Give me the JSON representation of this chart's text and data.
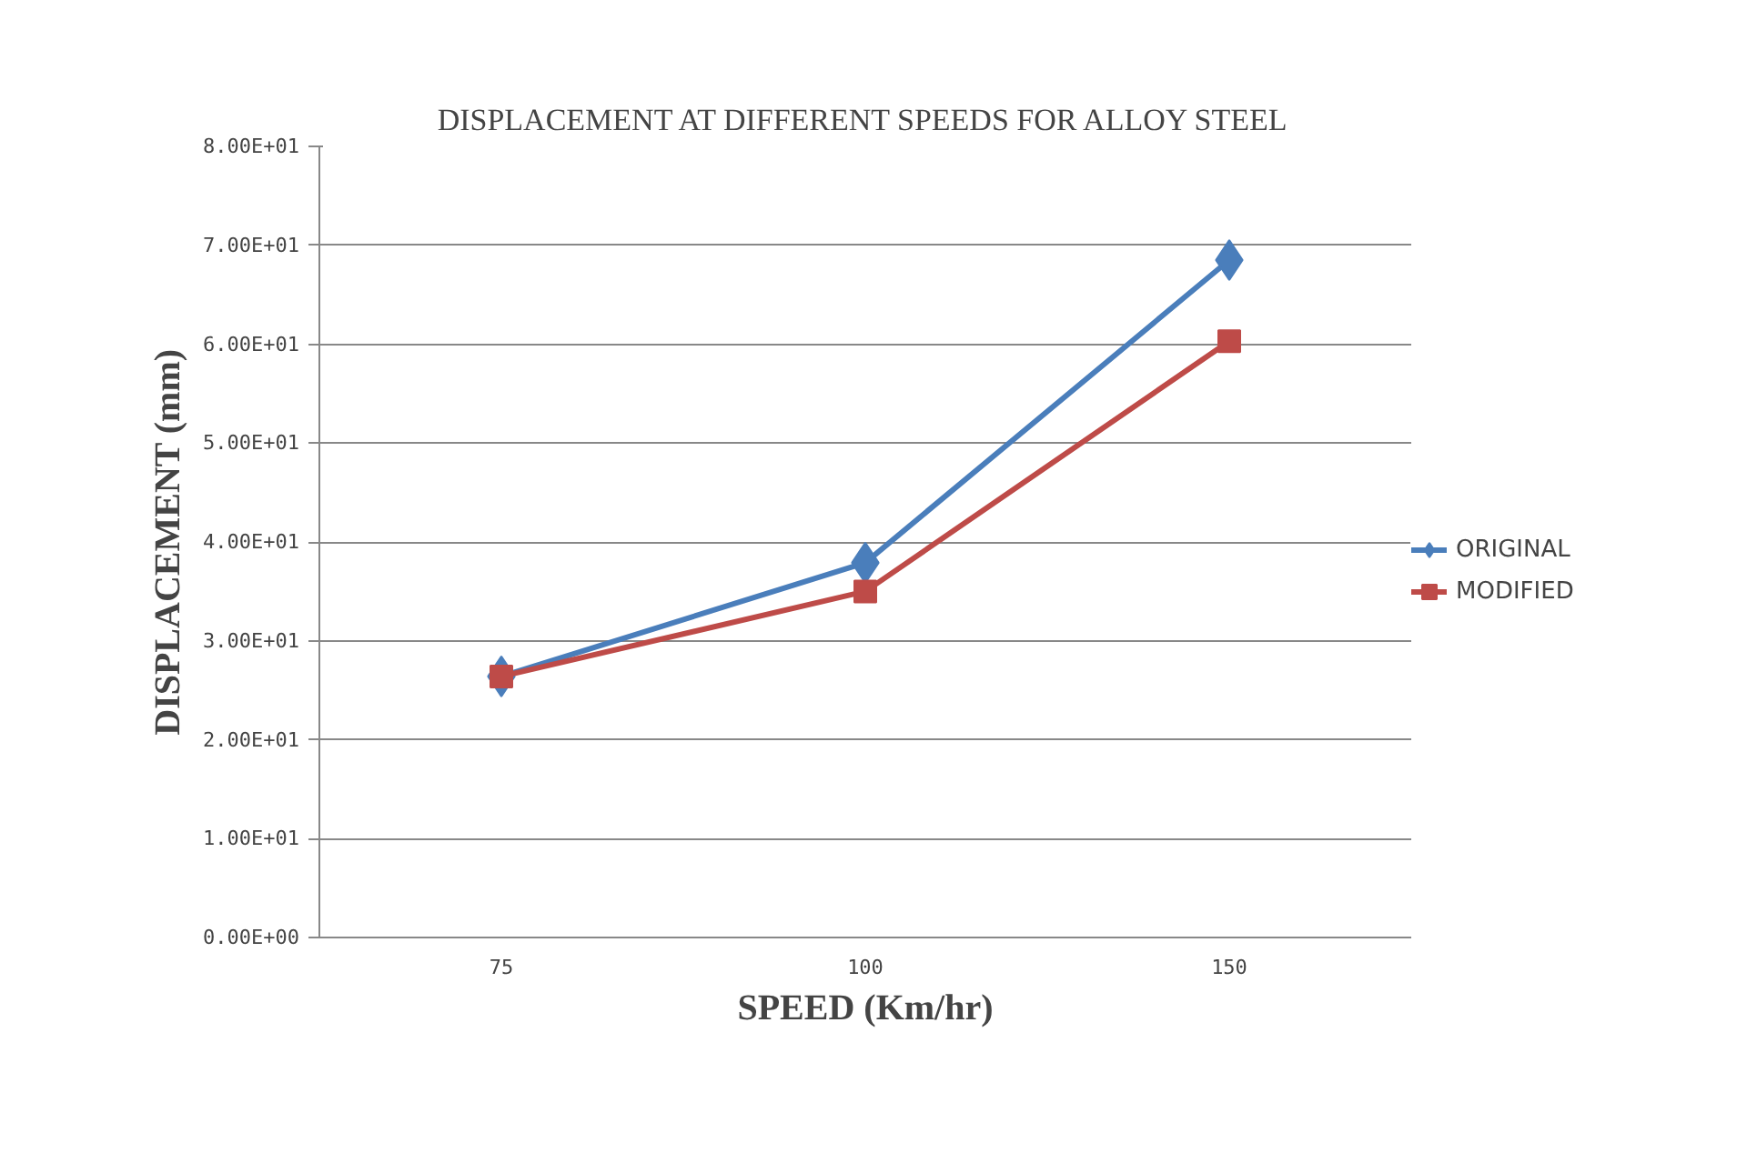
{
  "chart_data": {
    "type": "line",
    "title": "DISPLACEMENT AT DIFFERENT SPEEDS FOR ALLOY STEEL",
    "xlabel": "SPEED (Km/hr)",
    "ylabel": "DISPLACEMENT (mm)",
    "categories": [
      "75",
      "100",
      "150"
    ],
    "series": [
      {
        "name": "ORIGINAL",
        "color": "#4a7ebb",
        "marker": "diamond",
        "values": [
          26.4,
          37.9,
          68.5
        ]
      },
      {
        "name": "MODIFIED",
        "color": "#be4b48",
        "marker": "square",
        "values": [
          26.4,
          35.0,
          60.3
        ]
      }
    ],
    "ylim": [
      0,
      80
    ],
    "yticks": [
      {
        "value": 0,
        "label": "0.00E+00"
      },
      {
        "value": 10,
        "label": "1.00E+01"
      },
      {
        "value": 20,
        "label": "2.00E+01"
      },
      {
        "value": 30,
        "label": "3.00E+01"
      },
      {
        "value": 40,
        "label": "4.00E+01"
      },
      {
        "value": 50,
        "label": "5.00E+01"
      },
      {
        "value": 60,
        "label": "6.00E+01"
      },
      {
        "value": 70,
        "label": "7.00E+01"
      },
      {
        "value": 80,
        "label": "8.00E+01"
      }
    ],
    "grid": "y",
    "legend": "right",
    "line_style": "solid"
  }
}
